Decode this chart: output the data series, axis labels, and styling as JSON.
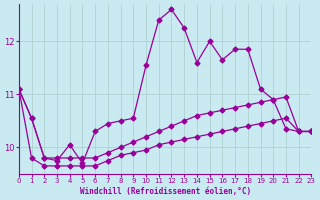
{
  "background_color": "#c8eaf0",
  "grid_color": "#aacccc",
  "line_color": "#990099",
  "xlabel": "Windchill (Refroidissement éolien,°C)",
  "xlim": [
    0,
    23
  ],
  "ylim": [
    9.5,
    12.7
  ],
  "yticks": [
    10,
    11,
    12
  ],
  "xticks": [
    0,
    1,
    2,
    3,
    4,
    5,
    6,
    7,
    8,
    9,
    10,
    11,
    12,
    13,
    14,
    15,
    16,
    17,
    18,
    19,
    20,
    21,
    22,
    23
  ],
  "series": [
    [
      11.1,
      10.55,
      9.8,
      9.75,
      10.05,
      9.7,
      10.3,
      10.45,
      10.5,
      10.55,
      11.55,
      12.4,
      12.6,
      12.25,
      11.6,
      12.0,
      11.65,
      11.85,
      11.85,
      11.1,
      10.9,
      10.35,
      10.3,
      10.3
    ],
    [
      11.1,
      10.55,
      9.8,
      9.8,
      9.8,
      9.8,
      9.8,
      9.9,
      10.0,
      10.1,
      10.2,
      10.3,
      10.4,
      10.5,
      10.6,
      10.65,
      10.7,
      10.75,
      10.8,
      10.85,
      10.9,
      10.95,
      10.3,
      10.3
    ],
    [
      11.1,
      9.8,
      9.65,
      9.65,
      9.65,
      9.65,
      9.65,
      9.75,
      9.85,
      9.9,
      9.95,
      10.05,
      10.1,
      10.15,
      10.2,
      10.25,
      10.3,
      10.35,
      10.4,
      10.45,
      10.5,
      10.55,
      10.3,
      10.3
    ]
  ]
}
